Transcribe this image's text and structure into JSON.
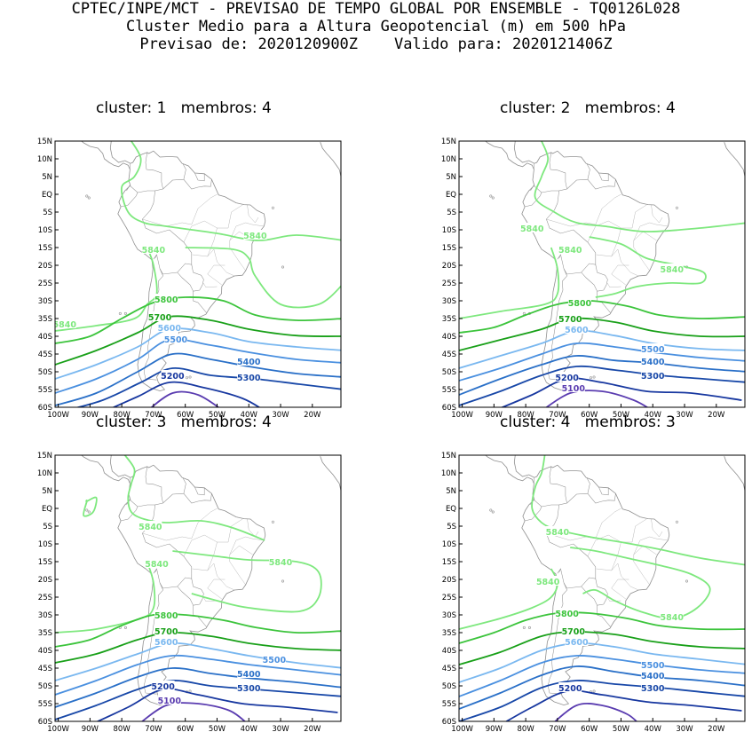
{
  "header": {
    "line1": "CPTEC/INPE/MCT - PREVISAO DE TEMPO GLOBAL POR ENSEMBLE - TQ0126L028",
    "line2": "Cluster Medio para a Altura Geopotencial (m) em 500 hPa",
    "line3": "Previsao de: 2020120900Z    Valido para: 2020121406Z"
  },
  "axes": {
    "lat_labels": [
      "15N",
      "10N",
      "5N",
      "EQ",
      "5S",
      "10S",
      "15S",
      "20S",
      "25S",
      "30S",
      "35S",
      "40S",
      "45S",
      "50S",
      "55S",
      "60S"
    ],
    "lon_labels": [
      "100W",
      "90W",
      "80W",
      "70W",
      "60W",
      "50W",
      "40W",
      "30W",
      "20W"
    ]
  },
  "colors": {
    "c5840": "#7ee87e",
    "c5800": "#3cc43c",
    "c5700": "#19a019",
    "c5600": "#7ab8f0",
    "c5500": "#4a90e0",
    "c5400": "#2a70c8",
    "c5300": "#1848a8",
    "c5200": "#1838a0",
    "c5100": "#5a3cb0",
    "coast": "#909090"
  },
  "panels": [
    {
      "title": "cluster: 1   membros: 4",
      "labels": {
        "5840a": "5840",
        "5840b": "5840",
        "5840c": "5840",
        "5800": "5800",
        "5700": "5700",
        "5600": "5600",
        "5500": "5500",
        "5400": "5400",
        "5300": "5300",
        "5200": "5200"
      }
    },
    {
      "title": "cluster: 2   membros: 4",
      "labels": {
        "5840a": "5840",
        "5840b": "5840",
        "5840c": "5840",
        "5800": "5800",
        "5700": "5700",
        "5600": "5600",
        "5500": "5500",
        "5400": "5400",
        "5300": "5300",
        "5200": "5200",
        "5100": "5100"
      }
    },
    {
      "title": "cluster: 3   membros: 4",
      "labels": {
        "5840a": "5840",
        "5840b": "5840",
        "5840c": "5840",
        "5800": "5800",
        "5700": "5700",
        "5600": "5600",
        "5500": "5500",
        "5400": "5400",
        "5300": "5300",
        "5200": "5200",
        "5100": "5100"
      }
    },
    {
      "title": "cluster: 4   membros: 3",
      "labels": {
        "5840a": "5840",
        "5840b": "5840",
        "5840c": "5840",
        "5800": "5800",
        "5700": "5700",
        "5600": "5600",
        "5500": "5500",
        "5400": "5400",
        "5300": "5300",
        "5200": "5200"
      }
    }
  ]
}
